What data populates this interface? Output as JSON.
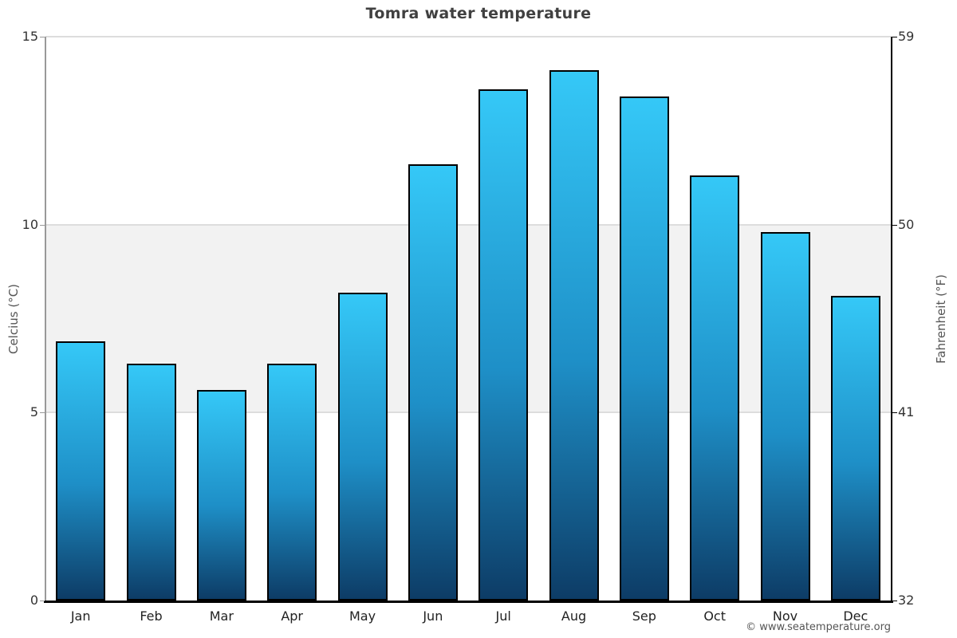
{
  "title": "Tomra water temperature",
  "footer": {
    "copyright": "© www.seatemperature.org"
  },
  "colors": {
    "bar_top": "#35c8f7",
    "bar_bottom": "#0d3c66",
    "bar_border": "#000000",
    "plot_band": "#f2f2f2",
    "gridline": "#dddddd",
    "left_axis": "#999999",
    "right_axis": "#000000",
    "baseline": "#000000",
    "title_text": "#404040",
    "tick_text": "#333333",
    "axis_title_text": "#555555",
    "footer_text": "#555555"
  },
  "chart_data": {
    "type": "bar",
    "title": "Tomra water temperature",
    "categories": [
      "Jan",
      "Feb",
      "Mar",
      "Apr",
      "May",
      "Jun",
      "Jul",
      "Aug",
      "Sep",
      "Oct",
      "Nov",
      "Dec"
    ],
    "series": [
      {
        "name": "Water temperature",
        "unit": "°C",
        "values": [
          6.9,
          6.3,
          5.6,
          6.3,
          8.2,
          11.6,
          13.6,
          14.1,
          13.4,
          11.3,
          9.8,
          8.1
        ]
      }
    ],
    "xlabel": "",
    "ylabel_left": "Celcius (°C)",
    "ylabel_right": "Fahrenheit (°F)",
    "ylim_celsius": [
      0,
      15
    ],
    "ylim_fahrenheit": [
      32,
      59
    ],
    "left_axis_ticks": [
      {
        "label": "15",
        "celsius": 15
      },
      {
        "label": "10",
        "celsius": 10
      },
      {
        "label": "5",
        "celsius": 5
      },
      {
        "label": "0",
        "celsius": 0
      }
    ],
    "right_axis_ticks": [
      {
        "label": "59",
        "celsius": 15
      },
      {
        "label": "50",
        "celsius": 10
      },
      {
        "label": "41",
        "celsius": 5
      },
      {
        "label": "32",
        "celsius": 0
      }
    ],
    "gridlines_celsius": [
      15,
      10,
      5
    ],
    "plot_band_celsius": [
      5,
      10
    ],
    "legend": "none",
    "grid": "horizontal"
  }
}
